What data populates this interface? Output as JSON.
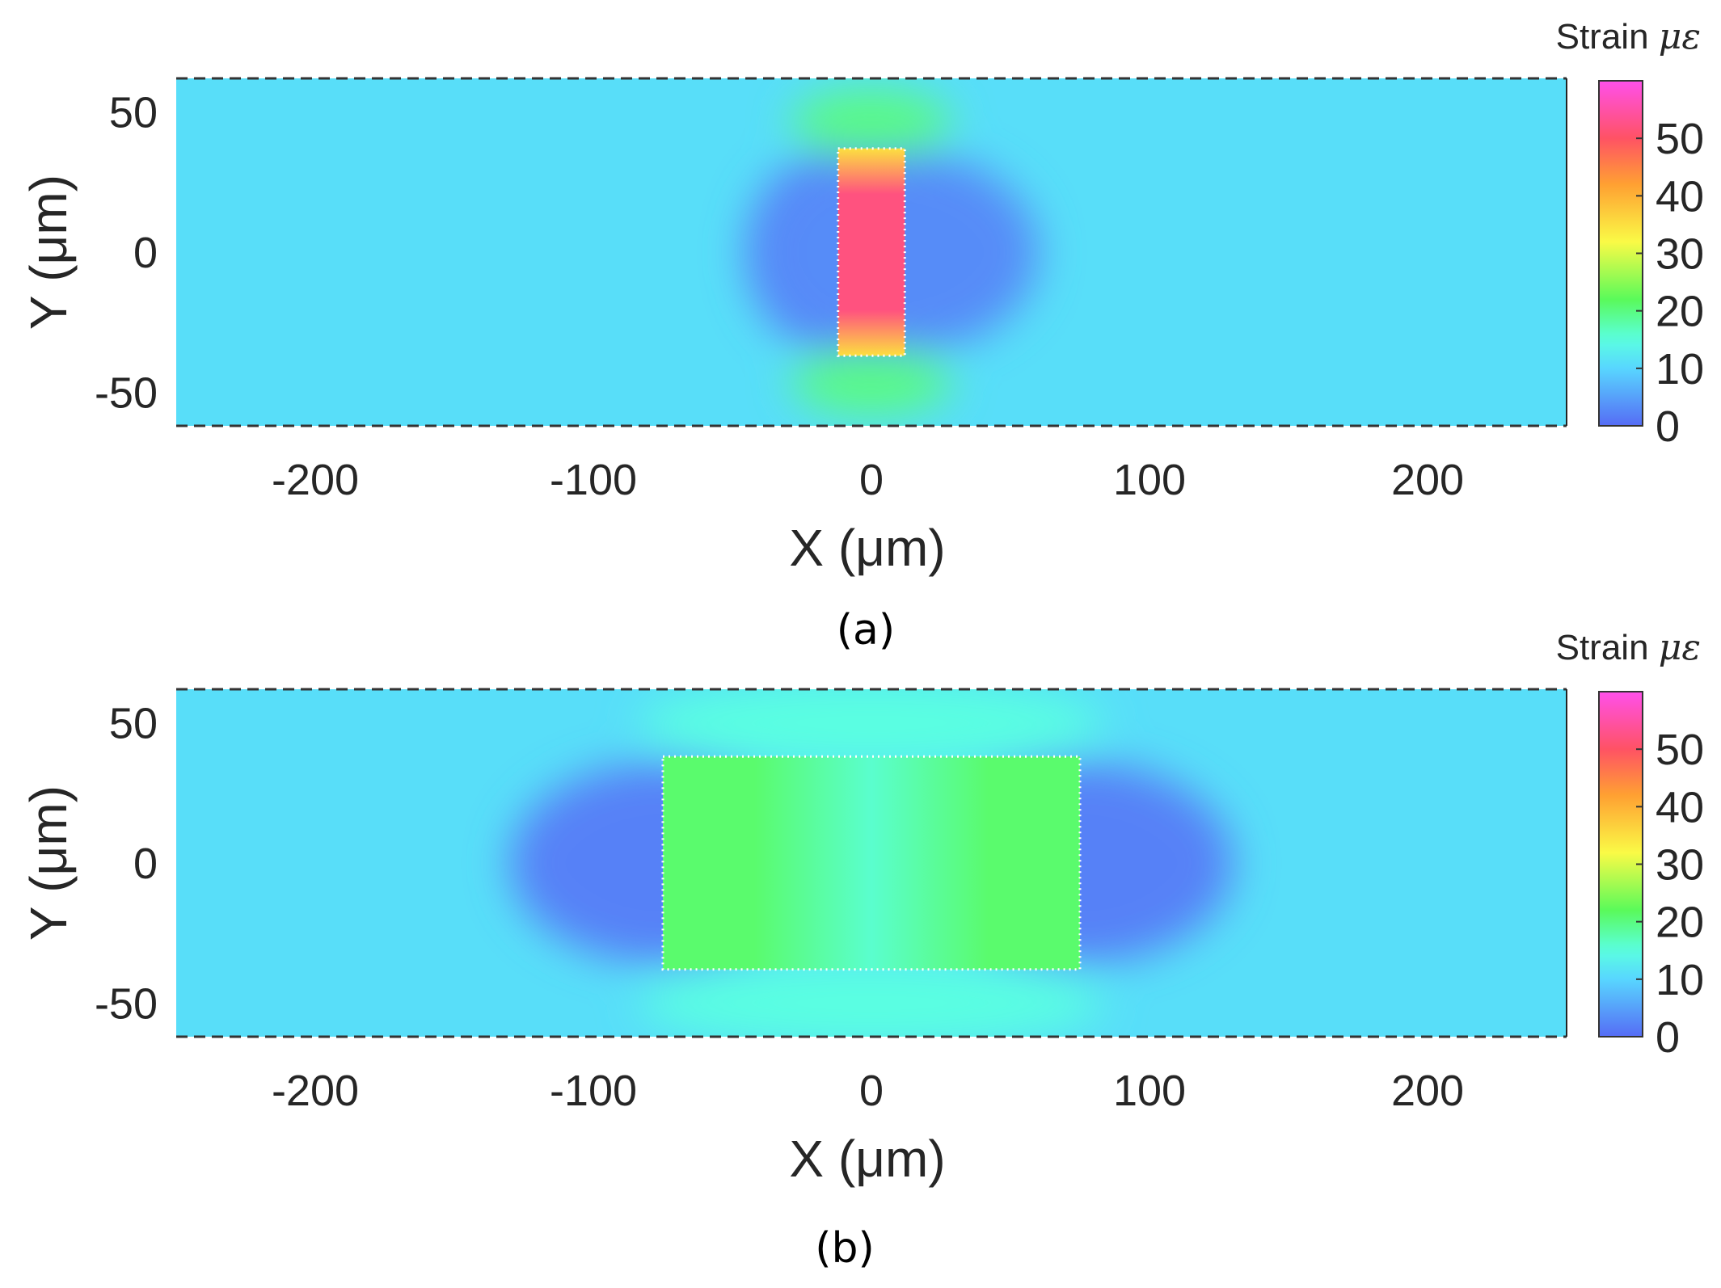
{
  "chart_data": [
    {
      "type": "heatmap",
      "panel_label": "(a)",
      "xlabel": "X (μm)",
      "ylabel": "Y (μm)",
      "xlim": [
        -250,
        250
      ],
      "ylim": [
        -62,
        62
      ],
      "x_ticks": [
        -200,
        -100,
        0,
        100,
        200
      ],
      "y_ticks": [
        -50,
        0,
        50
      ],
      "colorbar": {
        "title": "Strain",
        "unit": "με",
        "range": [
          0,
          60
        ],
        "ticks": [
          0,
          10,
          20,
          30,
          40,
          50
        ]
      },
      "background_strain": 11,
      "inclusion": {
        "x": [
          -12,
          12
        ],
        "y": [
          -37,
          37
        ],
        "strain_center": 52,
        "strain_edges": 35
      },
      "low_strain_regions": [
        {
          "x": [
            -45,
            -12
          ],
          "y": [
            -30,
            30
          ],
          "strain": 2
        },
        {
          "x": [
            12,
            60
          ],
          "y": [
            -30,
            30
          ],
          "strain": 3
        }
      ],
      "elevated_strain_regions": [
        {
          "x": [
            -20,
            20
          ],
          "y": [
            37,
            55
          ],
          "strain": 20
        },
        {
          "x": [
            -20,
            20
          ],
          "y": [
            -55,
            -37
          ],
          "strain": 20
        }
      ]
    },
    {
      "type": "heatmap",
      "panel_label": "(b)",
      "xlabel": "X (μm)",
      "ylabel": "Y (μm)",
      "xlim": [
        -250,
        250
      ],
      "ylim": [
        -62,
        62
      ],
      "x_ticks": [
        -200,
        -100,
        0,
        100,
        200
      ],
      "y_ticks": [
        -50,
        0,
        50
      ],
      "colorbar": {
        "title": "Strain",
        "unit": "με",
        "range": [
          0,
          60
        ],
        "ticks": [
          0,
          10,
          20,
          30,
          40,
          50
        ]
      },
      "background_strain": 11,
      "inclusion": {
        "x": [
          -75,
          75
        ],
        "y": [
          -38,
          38
        ],
        "strain_center": 16,
        "strain_edges": 21
      },
      "low_strain_regions": [
        {
          "x": [
            -130,
            -75
          ],
          "y": [
            -30,
            30
          ],
          "strain": 2
        },
        {
          "x": [
            75,
            130
          ],
          "y": [
            -30,
            30
          ],
          "strain": 2
        }
      ],
      "elevated_strain_regions": [
        {
          "x": [
            -75,
            75
          ],
          "y": [
            38,
            62
          ],
          "strain": 15
        },
        {
          "x": [
            -75,
            75
          ],
          "y": [
            -62,
            -38
          ],
          "strain": 15
        }
      ]
    }
  ]
}
